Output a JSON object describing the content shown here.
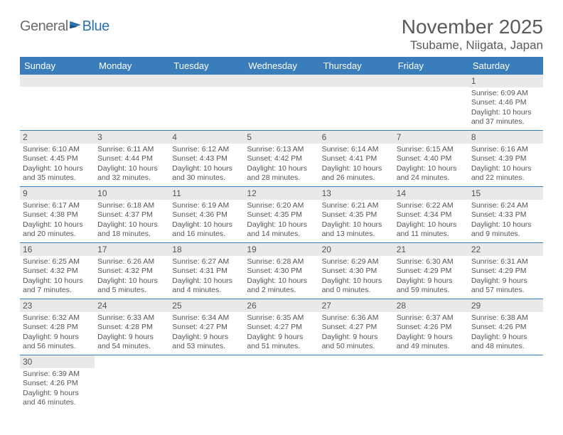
{
  "brand": {
    "part1": "General",
    "part2": "Blue"
  },
  "title": "November 2025",
  "location": "Tsubame, Niigata, Japan",
  "colors": {
    "header_bg": "#3a7dbb",
    "daynum_bg": "#e9e9e9",
    "text": "#555555",
    "border": "#3a7dbb"
  },
  "day_headers": [
    "Sunday",
    "Monday",
    "Tuesday",
    "Wednesday",
    "Thursday",
    "Friday",
    "Saturday"
  ],
  "weeks": [
    [
      null,
      null,
      null,
      null,
      null,
      null,
      {
        "n": "1",
        "sr": "Sunrise: 6:09 AM",
        "ss": "Sunset: 4:46 PM",
        "dl": "Daylight: 10 hours and 37 minutes."
      }
    ],
    [
      {
        "n": "2",
        "sr": "Sunrise: 6:10 AM",
        "ss": "Sunset: 4:45 PM",
        "dl": "Daylight: 10 hours and 35 minutes."
      },
      {
        "n": "3",
        "sr": "Sunrise: 6:11 AM",
        "ss": "Sunset: 4:44 PM",
        "dl": "Daylight: 10 hours and 32 minutes."
      },
      {
        "n": "4",
        "sr": "Sunrise: 6:12 AM",
        "ss": "Sunset: 4:43 PM",
        "dl": "Daylight: 10 hours and 30 minutes."
      },
      {
        "n": "5",
        "sr": "Sunrise: 6:13 AM",
        "ss": "Sunset: 4:42 PM",
        "dl": "Daylight: 10 hours and 28 minutes."
      },
      {
        "n": "6",
        "sr": "Sunrise: 6:14 AM",
        "ss": "Sunset: 4:41 PM",
        "dl": "Daylight: 10 hours and 26 minutes."
      },
      {
        "n": "7",
        "sr": "Sunrise: 6:15 AM",
        "ss": "Sunset: 4:40 PM",
        "dl": "Daylight: 10 hours and 24 minutes."
      },
      {
        "n": "8",
        "sr": "Sunrise: 6:16 AM",
        "ss": "Sunset: 4:39 PM",
        "dl": "Daylight: 10 hours and 22 minutes."
      }
    ],
    [
      {
        "n": "9",
        "sr": "Sunrise: 6:17 AM",
        "ss": "Sunset: 4:38 PM",
        "dl": "Daylight: 10 hours and 20 minutes."
      },
      {
        "n": "10",
        "sr": "Sunrise: 6:18 AM",
        "ss": "Sunset: 4:37 PM",
        "dl": "Daylight: 10 hours and 18 minutes."
      },
      {
        "n": "11",
        "sr": "Sunrise: 6:19 AM",
        "ss": "Sunset: 4:36 PM",
        "dl": "Daylight: 10 hours and 16 minutes."
      },
      {
        "n": "12",
        "sr": "Sunrise: 6:20 AM",
        "ss": "Sunset: 4:35 PM",
        "dl": "Daylight: 10 hours and 14 minutes."
      },
      {
        "n": "13",
        "sr": "Sunrise: 6:21 AM",
        "ss": "Sunset: 4:35 PM",
        "dl": "Daylight: 10 hours and 13 minutes."
      },
      {
        "n": "14",
        "sr": "Sunrise: 6:22 AM",
        "ss": "Sunset: 4:34 PM",
        "dl": "Daylight: 10 hours and 11 minutes."
      },
      {
        "n": "15",
        "sr": "Sunrise: 6:24 AM",
        "ss": "Sunset: 4:33 PM",
        "dl": "Daylight: 10 hours and 9 minutes."
      }
    ],
    [
      {
        "n": "16",
        "sr": "Sunrise: 6:25 AM",
        "ss": "Sunset: 4:32 PM",
        "dl": "Daylight: 10 hours and 7 minutes."
      },
      {
        "n": "17",
        "sr": "Sunrise: 6:26 AM",
        "ss": "Sunset: 4:32 PM",
        "dl": "Daylight: 10 hours and 5 minutes."
      },
      {
        "n": "18",
        "sr": "Sunrise: 6:27 AM",
        "ss": "Sunset: 4:31 PM",
        "dl": "Daylight: 10 hours and 4 minutes."
      },
      {
        "n": "19",
        "sr": "Sunrise: 6:28 AM",
        "ss": "Sunset: 4:30 PM",
        "dl": "Daylight: 10 hours and 2 minutes."
      },
      {
        "n": "20",
        "sr": "Sunrise: 6:29 AM",
        "ss": "Sunset: 4:30 PM",
        "dl": "Daylight: 10 hours and 0 minutes."
      },
      {
        "n": "21",
        "sr": "Sunrise: 6:30 AM",
        "ss": "Sunset: 4:29 PM",
        "dl": "Daylight: 9 hours and 59 minutes."
      },
      {
        "n": "22",
        "sr": "Sunrise: 6:31 AM",
        "ss": "Sunset: 4:29 PM",
        "dl": "Daylight: 9 hours and 57 minutes."
      }
    ],
    [
      {
        "n": "23",
        "sr": "Sunrise: 6:32 AM",
        "ss": "Sunset: 4:28 PM",
        "dl": "Daylight: 9 hours and 56 minutes."
      },
      {
        "n": "24",
        "sr": "Sunrise: 6:33 AM",
        "ss": "Sunset: 4:28 PM",
        "dl": "Daylight: 9 hours and 54 minutes."
      },
      {
        "n": "25",
        "sr": "Sunrise: 6:34 AM",
        "ss": "Sunset: 4:27 PM",
        "dl": "Daylight: 9 hours and 53 minutes."
      },
      {
        "n": "26",
        "sr": "Sunrise: 6:35 AM",
        "ss": "Sunset: 4:27 PM",
        "dl": "Daylight: 9 hours and 51 minutes."
      },
      {
        "n": "27",
        "sr": "Sunrise: 6:36 AM",
        "ss": "Sunset: 4:27 PM",
        "dl": "Daylight: 9 hours and 50 minutes."
      },
      {
        "n": "28",
        "sr": "Sunrise: 6:37 AM",
        "ss": "Sunset: 4:26 PM",
        "dl": "Daylight: 9 hours and 49 minutes."
      },
      {
        "n": "29",
        "sr": "Sunrise: 6:38 AM",
        "ss": "Sunset: 4:26 PM",
        "dl": "Daylight: 9 hours and 48 minutes."
      }
    ],
    [
      {
        "n": "30",
        "sr": "Sunrise: 6:39 AM",
        "ss": "Sunset: 4:26 PM",
        "dl": "Daylight: 9 hours and 46 minutes."
      },
      null,
      null,
      null,
      null,
      null,
      null
    ]
  ]
}
